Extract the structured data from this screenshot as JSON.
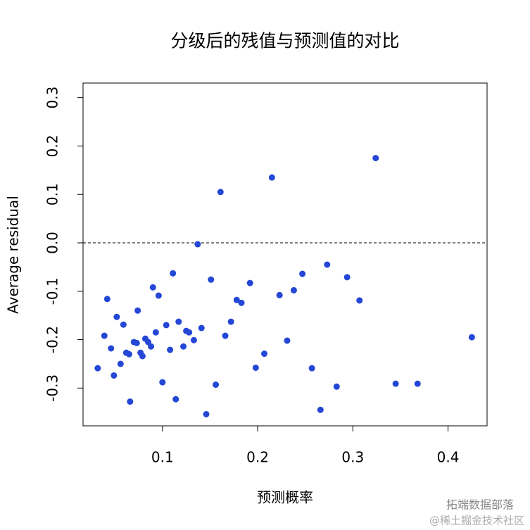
{
  "chart_data": {
    "type": "scatter",
    "title": "分级后的残值与预测值的对比",
    "x_label": "预测概率",
    "y_label": "Average residual",
    "color": "#2447d6",
    "hline": 0,
    "xlim": [
      0.0166,
      0.441
    ],
    "ylim": [
      -0.378,
      0.33
    ],
    "xticks": [
      0.1,
      0.2,
      0.3,
      0.4
    ],
    "yticks": [
      -0.3,
      -0.2,
      -0.1,
      {
        "value": 0,
        "label": "0.0"
      },
      0.1,
      0.2,
      0.3
    ],
    "x": [
      0.032,
      0.039,
      0.042,
      0.046,
      0.049,
      0.052,
      0.056,
      0.059,
      0.062,
      0.065,
      0.066,
      0.07,
      0.073,
      0.074,
      0.077,
      0.079,
      0.082,
      0.085,
      0.088,
      0.09,
      0.093,
      0.096,
      0.1,
      0.104,
      0.108,
      0.111,
      0.114,
      0.117,
      0.122,
      0.125,
      0.128,
      0.133,
      0.137,
      0.141,
      0.146,
      0.151,
      0.156,
      0.161,
      0.166,
      0.172,
      0.178,
      0.183,
      0.192,
      0.198,
      0.207,
      0.215,
      0.223,
      0.231,
      0.238,
      0.247,
      0.257,
      0.266,
      0.273,
      0.283,
      0.294,
      0.307,
      0.324,
      0.345,
      0.368,
      0.425
    ],
    "y": [
      -0.259,
      -0.192,
      -0.116,
      -0.218,
      -0.274,
      -0.153,
      -0.25,
      -0.169,
      -0.227,
      -0.23,
      -0.328,
      -0.205,
      -0.207,
      -0.14,
      -0.227,
      -0.234,
      -0.198,
      -0.205,
      -0.214,
      -0.092,
      -0.185,
      -0.109,
      -0.288,
      -0.17,
      -0.221,
      -0.063,
      -0.323,
      -0.163,
      -0.214,
      -0.182,
      -0.185,
      -0.201,
      -0.003,
      -0.176,
      -0.354,
      -0.076,
      -0.293,
      0.105,
      -0.192,
      -0.163,
      -0.118,
      -0.124,
      -0.083,
      -0.258,
      -0.229,
      0.135,
      -0.108,
      -0.202,
      -0.098,
      -0.064,
      -0.259,
      -0.345,
      -0.045,
      -0.297,
      -0.071,
      -0.119,
      0.175,
      -0.291,
      -0.291,
      -0.195
    ],
    "watermark": [
      "拓端数据部落",
      "@稀土掘金技术社区"
    ]
  }
}
